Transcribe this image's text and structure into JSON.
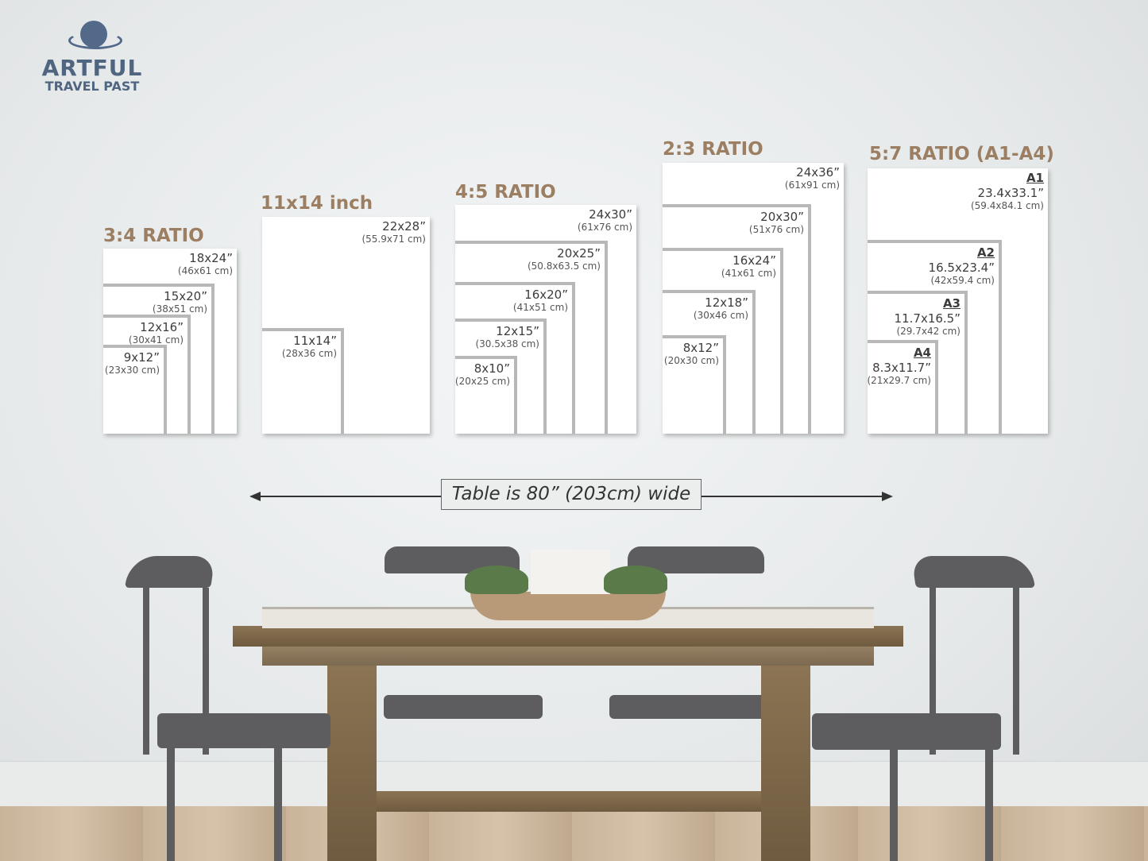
{
  "logo": {
    "line1": "ARTFUL",
    "line2": "TRAVEL PAST"
  },
  "colors": {
    "title": "#9c7f62",
    "frame_border": "#b8b8b8",
    "logo": "#4f6580"
  },
  "groups": [
    {
      "title": "3:4 RATIO",
      "frames": [
        {
          "size": "18x24”",
          "cm": "(46x61 cm)"
        },
        {
          "size": "15x20”",
          "cm": "(38x51 cm)"
        },
        {
          "size": "12x16”",
          "cm": "(30x41 cm)"
        },
        {
          "size": "9x12”",
          "cm": "(23x30 cm)"
        }
      ]
    },
    {
      "title": "11x14 inch",
      "frames": [
        {
          "size": "22x28”",
          "cm": "(55.9x71 cm)"
        },
        {
          "size": "11x14”",
          "cm": "(28x36 cm)"
        }
      ]
    },
    {
      "title": "4:5 RATIO",
      "frames": [
        {
          "size": "24x30”",
          "cm": "(61x76 cm)"
        },
        {
          "size": "20x25”",
          "cm": "(50.8x63.5 cm)"
        },
        {
          "size": "16x20”",
          "cm": "(41x51 cm)"
        },
        {
          "size": "12x15”",
          "cm": "(30.5x38 cm)"
        },
        {
          "size": "8x10”",
          "cm": "(20x25 cm)"
        }
      ]
    },
    {
      "title": "2:3 RATIO",
      "frames": [
        {
          "size": "24x36”",
          "cm": "(61x91 cm)"
        },
        {
          "size": "20x30”",
          "cm": "(51x76 cm)"
        },
        {
          "size": "16x24”",
          "cm": "(41x61 cm)"
        },
        {
          "size": "12x18”",
          "cm": "(30x46 cm)"
        },
        {
          "size": "8x12”",
          "cm": "(20x30 cm)"
        }
      ]
    },
    {
      "title": "5:7 RATIO (A1-A4)",
      "frames": [
        {
          "paper": "A1",
          "size": "23.4x33.1”",
          "cm": "(59.4x84.1 cm)"
        },
        {
          "paper": "A2",
          "size": "16.5x23.4”",
          "cm": "(42x59.4 cm)"
        },
        {
          "paper": "A3",
          "size": "11.7x16.5”",
          "cm": "(29.7x42 cm)"
        },
        {
          "paper": "A4",
          "size": "8.3x11.7”",
          "cm": "(21x29.7 cm)"
        }
      ]
    }
  ],
  "table_width": {
    "label": "Table is 80” (203cm) wide"
  }
}
